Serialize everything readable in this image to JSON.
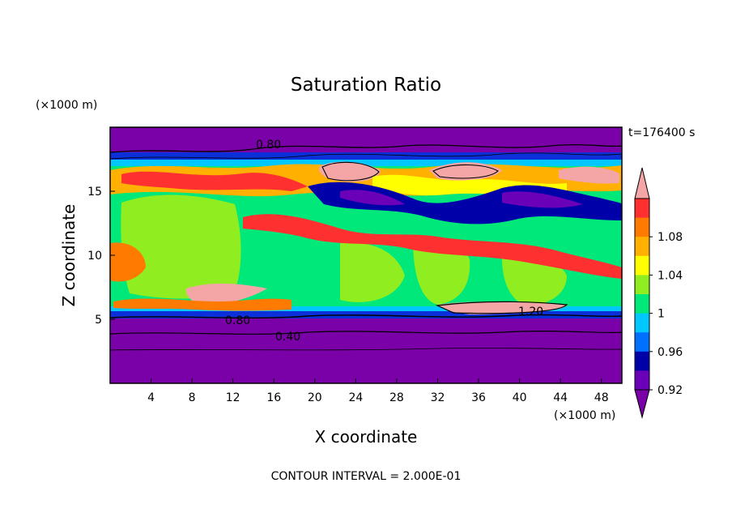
{
  "chart_data": {
    "type": "heatmap",
    "title": "Saturation Ratio",
    "xlabel": "X coordinate",
    "ylabel": "Z coordinate",
    "x_unit": "(×1000 m)",
    "y_unit": "(×1000 m)",
    "xlim": [
      0,
      50
    ],
    "ylim": [
      0,
      20
    ],
    "x_ticks": [
      "4",
      "8",
      "12",
      "16",
      "20",
      "24",
      "28",
      "32",
      "36",
      "40",
      "44",
      "48"
    ],
    "y_ticks": [
      "5",
      "10",
      "15"
    ],
    "time_label": "t=176400 s",
    "footer": "CONTOUR INTERVAL = 2.000E-01",
    "colorbar": {
      "labels": [
        "1.08",
        "1.04",
        "1",
        "0.96",
        "0.92"
      ],
      "colors": [
        "#f4a6a6",
        "#ff3030",
        "#ff7a00",
        "#ffb000",
        "#ffff00",
        "#90ee20",
        "#00e87a",
        "#00c8ff",
        "#0070ff",
        "#0000a8",
        "#6a00b8",
        "#7a00a8"
      ]
    },
    "contour_labels": [
      "0.80",
      "1.20",
      "0.80",
      "0.40"
    ]
  }
}
